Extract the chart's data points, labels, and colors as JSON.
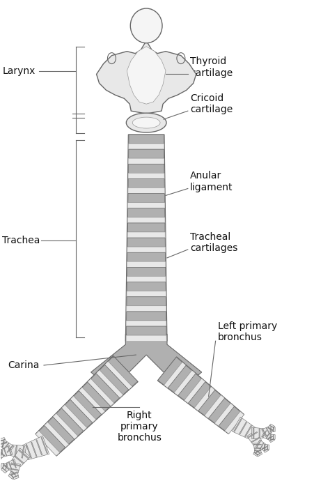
{
  "bg_color": "#ffffff",
  "outline_color": "#666666",
  "cartilage_fill": "#b0b0b0",
  "light_fill": "#e8e8e8",
  "white_fill": "#f5f5f5",
  "labels": {
    "larynx": "Larynx",
    "trachea": "Trachea",
    "carina": "Carina",
    "thyroid": "Thyroid\ncartilage",
    "cricoid": "Cricoid\ncartilage",
    "anular": "Anular\nligament",
    "tracheal_cart": "Tracheal\ncartilages",
    "left_bronchus": "Left primary\nbronchus",
    "right_bronchus": "Right\nprimary\nbronchus"
  },
  "figsize": [
    4.74,
    7.13
  ],
  "dpi": 100
}
